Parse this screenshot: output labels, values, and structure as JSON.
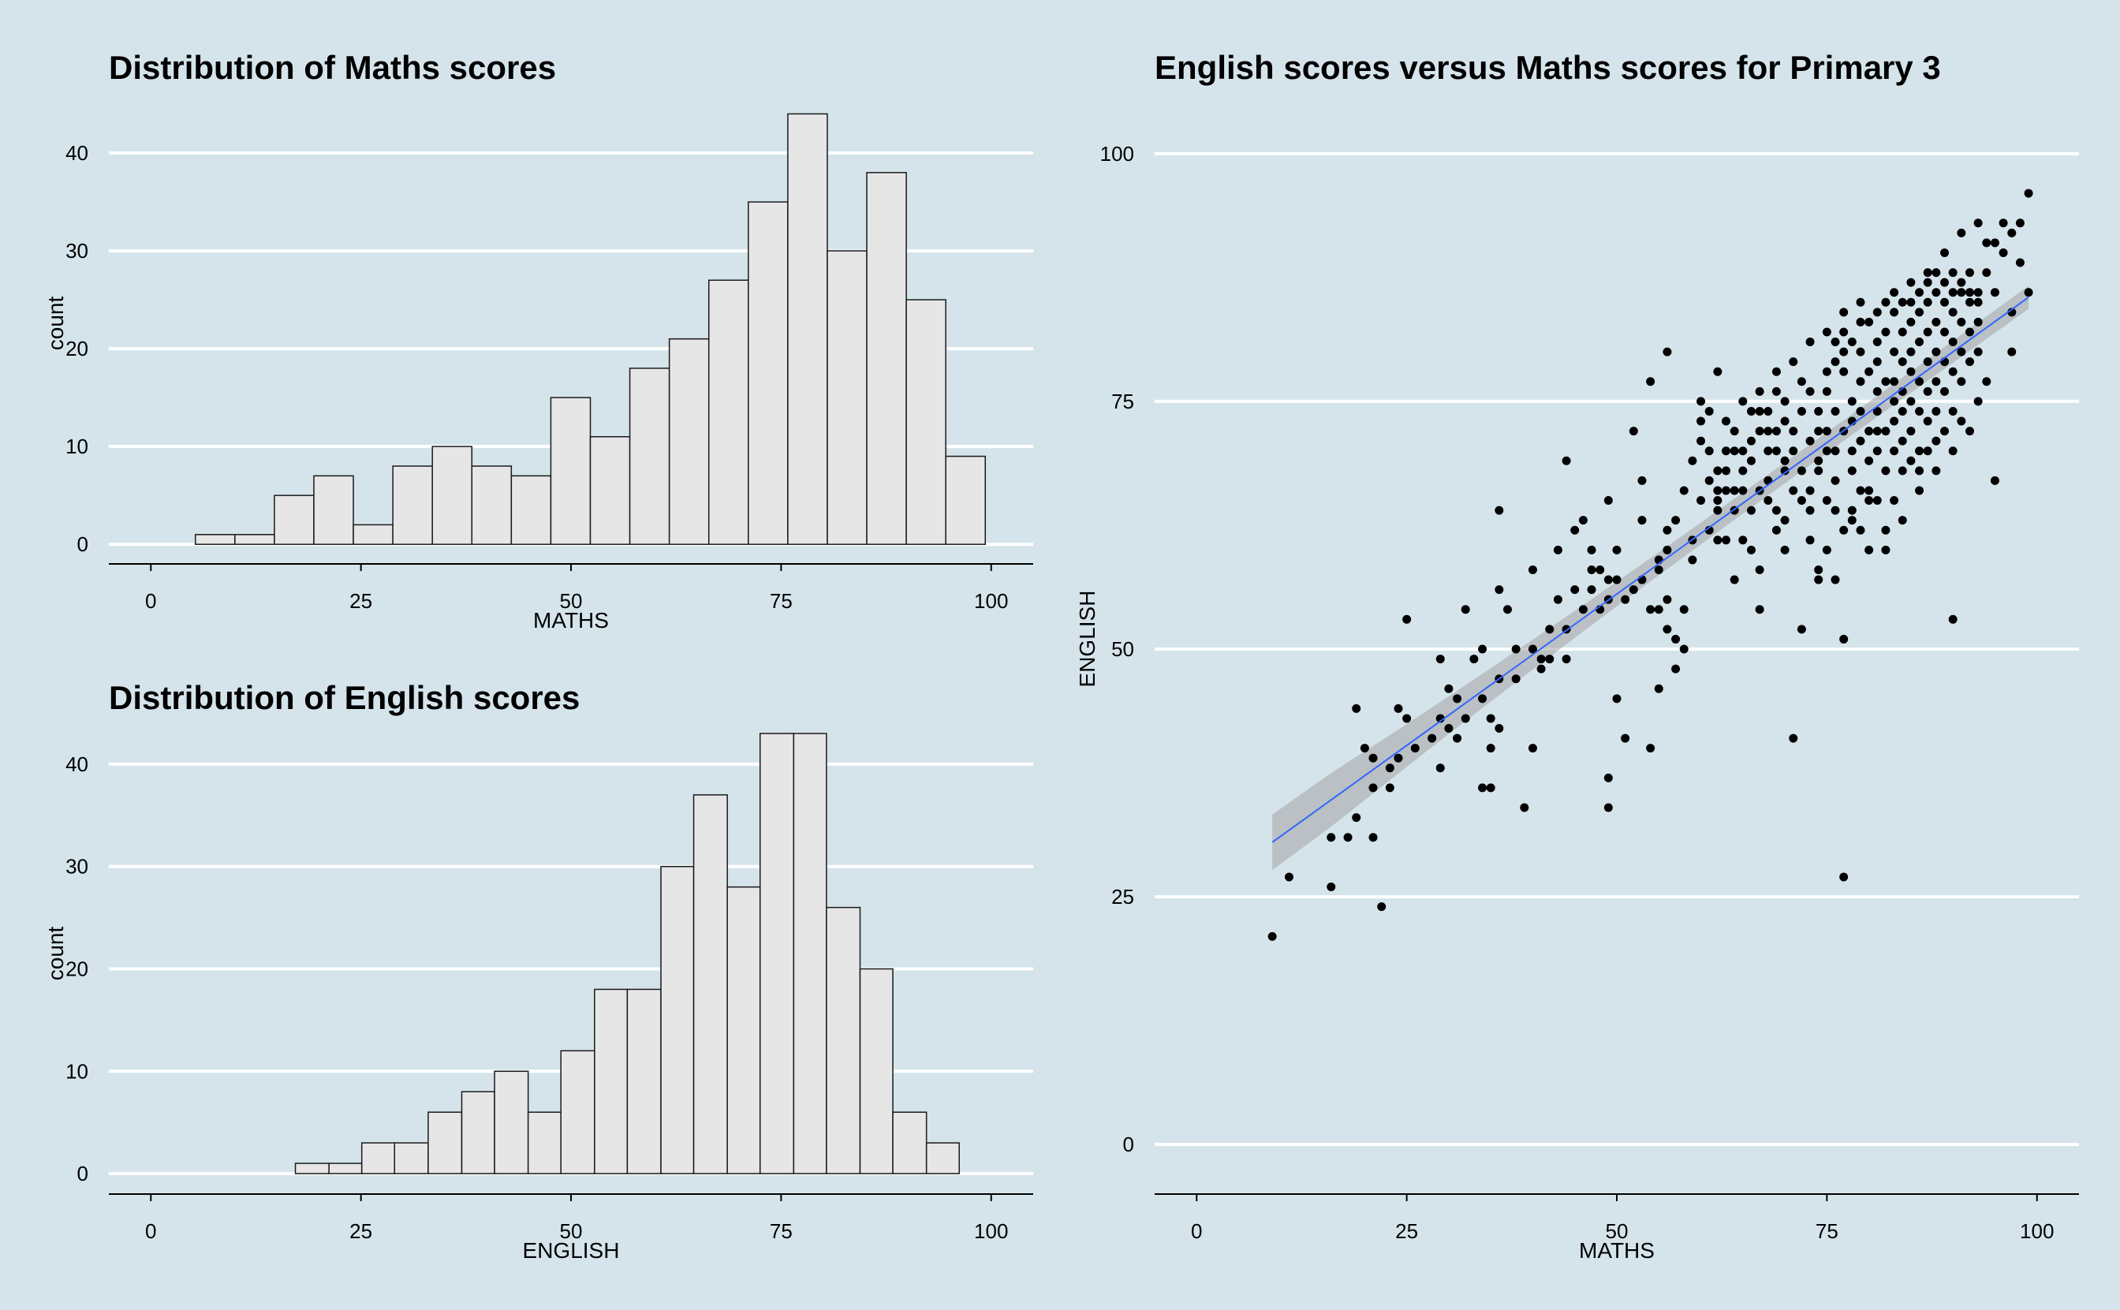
{
  "chart_data": [
    {
      "id": "maths-hist",
      "type": "bar",
      "subtype": "histogram",
      "title": "Distribution of Maths scores",
      "xlabel": "MATHS",
      "ylabel": "count",
      "xlim": [
        -5,
        105
      ],
      "ylim": [
        -2,
        45
      ],
      "xticks": [
        0,
        25,
        50,
        75,
        100
      ],
      "yticks": [
        0,
        10,
        20,
        30,
        40
      ],
      "bin_edges": [
        5.3,
        10.0,
        14.7,
        19.4,
        24.1,
        28.8,
        33.5,
        38.2,
        42.9,
        47.6,
        52.3,
        57.0,
        61.7,
        66.4,
        71.1,
        75.8,
        80.5,
        85.2,
        89.9,
        94.6,
        99.3
      ],
      "values": [
        1,
        1,
        5,
        7,
        2,
        8,
        10,
        8,
        7,
        15,
        11,
        18,
        21,
        27,
        35,
        44,
        30,
        38,
        25,
        9
      ],
      "grid": "horizontal"
    },
    {
      "id": "english-hist",
      "type": "bar",
      "subtype": "histogram",
      "title": "Distribution of English scores",
      "xlabel": "ENGLISH",
      "ylabel": "count",
      "xlim": [
        -5,
        105
      ],
      "ylim": [
        -2,
        43
      ],
      "xticks": [
        0,
        25,
        50,
        75,
        100
      ],
      "yticks": [
        0,
        10,
        20,
        30,
        40
      ],
      "bin_edges": [
        17.2,
        21.2,
        25.1,
        29.0,
        33.0,
        37.0,
        40.9,
        44.9,
        48.8,
        52.8,
        56.7,
        60.7,
        64.6,
        68.6,
        72.5,
        76.5,
        80.4,
        84.4,
        88.3,
        92.3,
        96.2
      ],
      "values": [
        1,
        1,
        3,
        3,
        6,
        8,
        10,
        6,
        12,
        18,
        18,
        30,
        37,
        28,
        43,
        43,
        26,
        20,
        6,
        3
      ],
      "grid": "horizontal"
    },
    {
      "id": "scatter",
      "type": "scatter",
      "title": "English scores versus Maths scores for Primary 3",
      "xlabel": "MATHS",
      "ylabel": "ENGLISH",
      "xlim": [
        -5,
        105
      ],
      "ylim": [
        -5,
        105
      ],
      "xticks": [
        0,
        25,
        50,
        75,
        100
      ],
      "yticks": [
        0,
        25,
        50,
        75,
        100
      ],
      "grid": "horizontal",
      "fit": {
        "method": "linear",
        "x": [
          9,
          99
        ],
        "y": [
          30.5,
          85.5
        ],
        "se_halfwidth": [
          2.8,
          1.6
        ],
        "color": "#3366ff"
      },
      "points": [
        [
          9,
          21
        ],
        [
          11,
          27
        ],
        [
          16,
          26
        ],
        [
          16,
          31
        ],
        [
          18,
          31
        ],
        [
          19,
          33
        ],
        [
          19,
          44
        ],
        [
          20,
          40
        ],
        [
          21,
          39
        ],
        [
          21,
          31
        ],
        [
          22,
          24
        ],
        [
          23,
          36
        ],
        [
          24,
          39
        ],
        [
          24,
          44
        ],
        [
          25,
          43
        ],
        [
          25,
          53
        ],
        [
          29,
          38
        ],
        [
          29,
          43
        ],
        [
          29,
          49
        ],
        [
          30,
          46
        ],
        [
          31,
          41
        ],
        [
          31,
          45
        ],
        [
          32,
          54
        ],
        [
          33,
          49
        ],
        [
          34,
          50
        ],
        [
          34,
          36
        ],
        [
          35,
          43
        ],
        [
          35,
          36
        ],
        [
          35,
          40
        ],
        [
          36,
          64
        ],
        [
          36,
          42
        ],
        [
          36,
          56
        ],
        [
          37,
          54
        ],
        [
          38,
          50
        ],
        [
          39,
          34
        ],
        [
          40,
          40
        ],
        [
          40,
          58
        ],
        [
          41,
          48
        ],
        [
          41,
          49
        ],
        [
          42,
          52
        ],
        [
          43,
          60
        ],
        [
          43,
          55
        ],
        [
          44,
          49
        ],
        [
          44,
          69
        ],
        [
          45,
          62
        ],
        [
          46,
          63
        ],
        [
          47,
          56
        ],
        [
          47,
          58
        ],
        [
          48,
          54
        ],
        [
          48,
          58
        ],
        [
          49,
          65
        ],
        [
          49,
          57
        ],
        [
          49,
          37
        ],
        [
          49,
          34
        ],
        [
          50,
          45
        ],
        [
          50,
          60
        ],
        [
          50,
          57
        ],
        [
          51,
          41
        ],
        [
          52,
          72
        ],
        [
          52,
          56
        ],
        [
          53,
          63
        ],
        [
          53,
          67
        ],
        [
          54,
          40
        ],
        [
          54,
          77
        ],
        [
          54,
          54
        ],
        [
          55,
          46
        ],
        [
          55,
          54
        ],
        [
          55,
          59
        ],
        [
          56,
          52
        ],
        [
          56,
          55
        ],
        [
          56,
          60
        ],
        [
          56,
          80
        ],
        [
          57,
          51
        ],
        [
          57,
          48
        ],
        [
          58,
          54
        ],
        [
          58,
          50
        ],
        [
          59,
          59
        ],
        [
          59,
          61
        ],
        [
          60,
          71
        ],
        [
          60,
          75
        ],
        [
          61,
          74
        ],
        [
          61,
          70
        ],
        [
          62,
          68
        ],
        [
          62,
          78
        ],
        [
          62,
          64
        ],
        [
          62,
          66
        ],
        [
          63,
          61
        ],
        [
          63,
          66
        ],
        [
          63,
          68
        ],
        [
          64,
          64
        ],
        [
          64,
          57
        ],
        [
          64,
          72
        ],
        [
          65,
          70
        ],
        [
          65,
          68
        ],
        [
          65,
          66
        ],
        [
          65,
          61
        ],
        [
          66,
          60
        ],
        [
          66,
          64
        ],
        [
          67,
          58
        ],
        [
          67,
          66
        ],
        [
          67,
          74
        ],
        [
          67,
          54
        ],
        [
          68,
          72
        ],
        [
          68,
          70
        ],
        [
          68,
          65
        ],
        [
          69,
          64
        ],
        [
          69,
          76
        ],
        [
          69,
          62
        ],
        [
          69,
          72
        ],
        [
          70,
          68
        ],
        [
          70,
          63
        ],
        [
          70,
          75
        ],
        [
          70,
          60
        ],
        [
          71,
          66
        ],
        [
          71,
          70
        ],
        [
          71,
          72
        ],
        [
          72,
          74
        ],
        [
          72,
          68
        ],
        [
          72,
          65
        ],
        [
          72,
          52
        ],
        [
          73,
          64
        ],
        [
          73,
          61
        ],
        [
          73,
          66
        ],
        [
          74,
          68
        ],
        [
          74,
          72
        ],
        [
          74,
          58
        ],
        [
          74,
          69
        ],
        [
          75,
          72
        ],
        [
          75,
          76
        ],
        [
          75,
          70
        ],
        [
          75,
          65
        ],
        [
          75,
          60
        ],
        [
          76,
          74
        ],
        [
          76,
          79
        ],
        [
          76,
          70
        ],
        [
          76,
          64
        ],
        [
          76,
          57
        ],
        [
          77,
          72
        ],
        [
          77,
          78
        ],
        [
          77,
          80
        ],
        [
          77,
          62
        ],
        [
          77,
          51
        ],
        [
          78,
          75
        ],
        [
          78,
          73
        ],
        [
          78,
          70
        ],
        [
          78,
          68
        ],
        [
          78,
          64
        ],
        [
          79,
          77
        ],
        [
          79,
          74
        ],
        [
          79,
          71
        ],
        [
          79,
          66
        ],
        [
          79,
          62
        ],
        [
          79,
          85
        ],
        [
          80,
          72
        ],
        [
          80,
          69
        ],
        [
          80,
          78
        ],
        [
          80,
          66
        ],
        [
          80,
          60
        ],
        [
          81,
          76
        ],
        [
          81,
          72
        ],
        [
          81,
          70
        ],
        [
          81,
          65
        ],
        [
          81,
          74
        ],
        [
          81,
          79
        ],
        [
          82,
          82
        ],
        [
          82,
          77
        ],
        [
          82,
          72
        ],
        [
          82,
          68
        ],
        [
          82,
          60
        ],
        [
          83,
          80
        ],
        [
          83,
          77
        ],
        [
          83,
          75
        ],
        [
          83,
          73
        ],
        [
          83,
          70
        ],
        [
          83,
          65
        ],
        [
          84,
          79
        ],
        [
          84,
          76
        ],
        [
          84,
          74
        ],
        [
          84,
          71
        ],
        [
          84,
          68
        ],
        [
          84,
          82
        ],
        [
          85,
          83
        ],
        [
          85,
          80
        ],
        [
          85,
          78
        ],
        [
          85,
          75
        ],
        [
          85,
          72
        ],
        [
          85,
          69
        ],
        [
          86,
          84
        ],
        [
          86,
          81
        ],
        [
          86,
          77
        ],
        [
          86,
          74
        ],
        [
          86,
          70
        ],
        [
          86,
          66
        ],
        [
          87,
          85
        ],
        [
          87,
          82
        ],
        [
          87,
          79
        ],
        [
          87,
          76
        ],
        [
          87,
          73
        ],
        [
          87,
          70
        ],
        [
          88,
          86
        ],
        [
          88,
          83
        ],
        [
          88,
          80
        ],
        [
          88,
          77
        ],
        [
          88,
          74
        ],
        [
          88,
          71
        ],
        [
          89,
          85
        ],
        [
          89,
          82
        ],
        [
          89,
          79
        ],
        [
          89,
          76
        ],
        [
          89,
          72
        ],
        [
          90,
          88
        ],
        [
          90,
          84
        ],
        [
          90,
          81
        ],
        [
          90,
          78
        ],
        [
          90,
          74
        ],
        [
          90,
          70
        ],
        [
          90,
          53
        ],
        [
          91,
          86
        ],
        [
          91,
          83
        ],
        [
          91,
          80
        ],
        [
          91,
          77
        ],
        [
          91,
          73
        ],
        [
          92,
          88
        ],
        [
          92,
          85
        ],
        [
          92,
          82
        ],
        [
          92,
          79
        ],
        [
          93,
          86
        ],
        [
          93,
          83
        ],
        [
          93,
          80
        ],
        [
          94,
          91
        ],
        [
          94,
          88
        ],
        [
          95,
          86
        ],
        [
          95,
          67
        ],
        [
          96,
          90
        ],
        [
          97,
          84
        ],
        [
          97,
          80
        ],
        [
          98,
          93
        ],
        [
          98,
          89
        ],
        [
          99,
          96
        ],
        [
          99,
          86
        ],
        [
          74,
          57
        ],
        [
          71,
          41
        ],
        [
          77,
          27
        ],
        [
          94,
          77
        ],
        [
          93,
          75
        ],
        [
          92,
          72
        ],
        [
          88,
          68
        ],
        [
          86,
          68
        ],
        [
          84,
          63
        ],
        [
          82,
          62
        ],
        [
          80,
          65
        ],
        [
          78,
          63
        ],
        [
          76,
          67
        ],
        [
          73,
          71
        ],
        [
          70,
          73
        ],
        [
          68,
          67
        ],
        [
          66,
          69
        ],
        [
          64,
          70
        ],
        [
          63,
          73
        ],
        [
          60,
          65
        ],
        [
          59,
          69
        ],
        [
          58,
          66
        ],
        [
          57,
          63
        ],
        [
          56,
          62
        ],
        [
          55,
          58
        ],
        [
          53,
          57
        ],
        [
          51,
          55
        ],
        [
          49,
          55
        ],
        [
          46,
          54
        ],
        [
          44,
          52
        ],
        [
          42,
          49
        ],
        [
          40,
          50
        ],
        [
          38,
          47
        ],
        [
          36,
          47
        ],
        [
          34,
          45
        ],
        [
          32,
          43
        ],
        [
          30,
          42
        ],
        [
          28,
          41
        ],
        [
          26,
          40
        ],
        [
          23,
          38
        ],
        [
          21,
          36
        ],
        [
          45,
          56
        ],
        [
          47,
          60
        ],
        [
          61,
          62
        ],
        [
          62,
          65
        ],
        [
          64,
          66
        ],
        [
          66,
          71
        ],
        [
          67,
          76
        ],
        [
          69,
          78
        ],
        [
          71,
          79
        ],
        [
          73,
          81
        ],
        [
          75,
          82
        ],
        [
          77,
          84
        ],
        [
          79,
          83
        ],
        [
          81,
          84
        ],
        [
          83,
          86
        ],
        [
          85,
          87
        ],
        [
          87,
          88
        ],
        [
          89,
          90
        ],
        [
          91,
          92
        ],
        [
          93,
          93
        ],
        [
          95,
          91
        ],
        [
          96,
          93
        ],
        [
          97,
          92
        ],
        [
          60,
          73
        ],
        [
          61,
          67
        ],
        [
          62,
          61
        ],
        [
          63,
          70
        ],
        [
          65,
          75
        ],
        [
          66,
          74
        ],
        [
          67,
          72
        ],
        [
          68,
          74
        ],
        [
          69,
          70
        ],
        [
          70,
          69
        ],
        [
          72,
          77
        ],
        [
          73,
          76
        ],
        [
          74,
          74
        ],
        [
          75,
          78
        ],
        [
          76,
          81
        ],
        [
          77,
          82
        ],
        [
          78,
          81
        ],
        [
          79,
          80
        ],
        [
          80,
          83
        ],
        [
          81,
          81
        ],
        [
          82,
          85
        ],
        [
          83,
          84
        ],
        [
          84,
          85
        ],
        [
          85,
          85
        ],
        [
          86,
          86
        ],
        [
          87,
          87
        ],
        [
          88,
          88
        ],
        [
          89,
          87
        ],
        [
          90,
          86
        ],
        [
          91,
          87
        ],
        [
          92,
          86
        ],
        [
          93,
          85
        ]
      ]
    }
  ]
}
